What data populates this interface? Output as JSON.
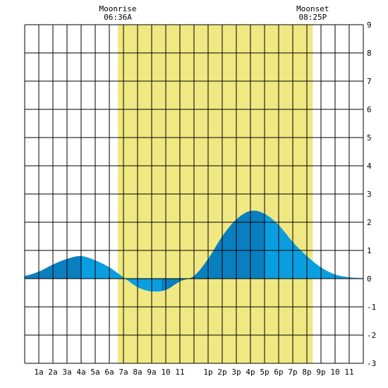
{
  "chart_data": {
    "type": "area",
    "moonrise": {
      "label": "Moonrise",
      "time_label": "06:36A",
      "hour": 6.6
    },
    "moonset": {
      "label": "Moonset",
      "time_label": "08:25P",
      "hour": 20.4167
    },
    "x_tick_labels": [
      "1a",
      "2a",
      "3a",
      "4a",
      "5a",
      "6a",
      "7a",
      "8a",
      "9a",
      "10",
      "11",
      "1p",
      "2p",
      "3p",
      "4p",
      "5p",
      "6p",
      "7p",
      "8p",
      "9p",
      "10",
      "11"
    ],
    "x_tick_hours": [
      1,
      2,
      3,
      4,
      5,
      6,
      7,
      8,
      9,
      10,
      11,
      13,
      14,
      15,
      16,
      17,
      18,
      19,
      20,
      21,
      22,
      23
    ],
    "xlim": [
      0,
      24
    ],
    "ylim": [
      -3,
      9
    ],
    "y_tick_labels": [
      "9",
      "8",
      "7",
      "6",
      "5",
      "4",
      "3",
      "2",
      "1",
      "0",
      "-1",
      "-2",
      "-3"
    ],
    "y_tick_values": [
      9,
      8,
      7,
      6,
      5,
      4,
      3,
      2,
      1,
      0,
      -1,
      -2,
      -3
    ],
    "grid": true,
    "series": [
      {
        "hours": [
          0,
          1,
          2,
          3,
          4,
          5,
          6,
          7,
          8,
          9,
          10,
          11,
          12,
          13,
          14,
          15,
          16,
          17,
          18,
          19,
          20,
          21,
          22,
          23,
          24
        ],
        "values": [
          0.1,
          0.25,
          0.5,
          0.7,
          0.8,
          0.65,
          0.4,
          0.05,
          -0.3,
          -0.45,
          -0.4,
          -0.1,
          0.1,
          0.7,
          1.5,
          2.1,
          2.4,
          2.3,
          1.9,
          1.3,
          0.8,
          0.4,
          0.15,
          0.05,
          0.02
        ]
      }
    ],
    "extremes": [
      {
        "kind": "high",
        "hour": 4.0,
        "value": 0.8
      },
      {
        "kind": "low",
        "hour": 9.7,
        "value": -0.45
      },
      {
        "kind": "high",
        "hour": 17.0,
        "value": 2.4
      }
    ],
    "colors": {
      "moon_band": "#f0e882",
      "water_light": "#0a9ee0",
      "water_dark": "#0a7fc0",
      "grid": "#000000",
      "background": "#ffffff"
    }
  }
}
